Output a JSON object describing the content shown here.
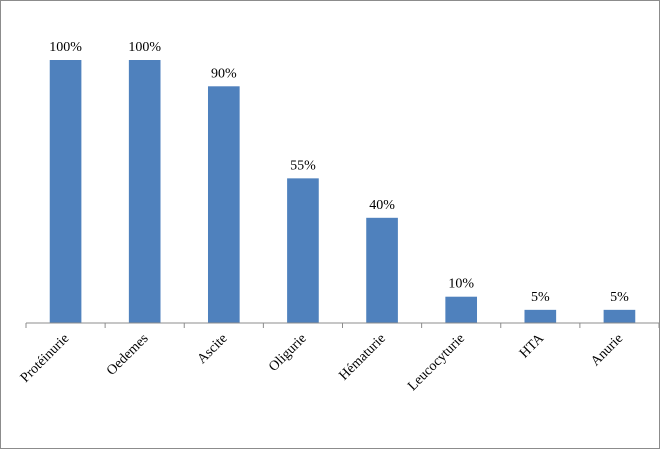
{
  "chart_data": {
    "type": "bar",
    "categories": [
      "Protéinurie",
      "Oedemes",
      "Ascite",
      "Oligurie",
      "Hématurie",
      "Leucocyturie",
      "HTA",
      "Anurie"
    ],
    "values": [
      100,
      100,
      90,
      55,
      40,
      10,
      5,
      5
    ],
    "value_labels": [
      "100%",
      "100%",
      "90%",
      "55%",
      "40%",
      "10%",
      "5%",
      "5%"
    ],
    "color": "#4f81bd",
    "ylim": [
      0,
      100
    ]
  }
}
